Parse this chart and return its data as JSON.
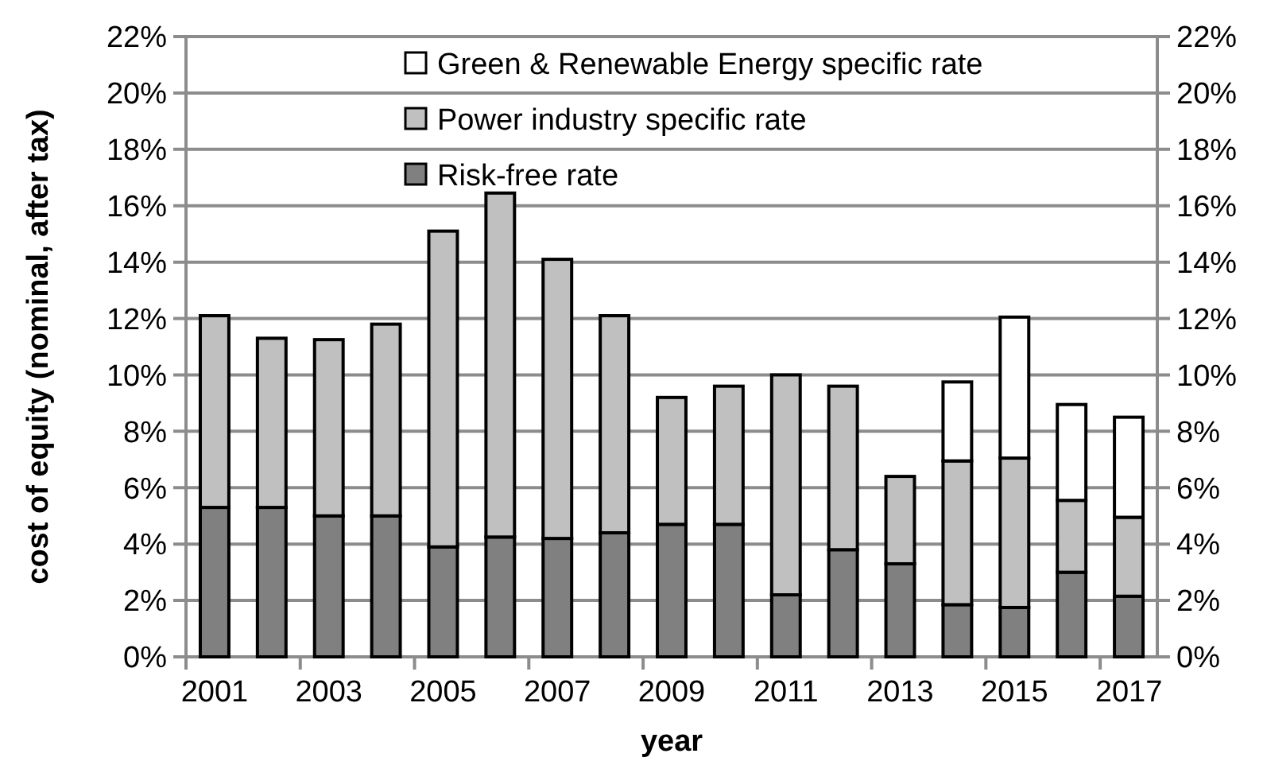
{
  "chart_data": {
    "type": "bar",
    "stacked": true,
    "xlabel": "year",
    "ylabel": "cost of equity (nominal, after tax)",
    "categories": [
      "2001",
      null,
      "2003",
      null,
      "2005",
      null,
      "2007",
      null,
      "2009",
      null,
      "2011",
      null,
      "2013",
      null,
      "2015",
      null,
      "2017"
    ],
    "series": [
      {
        "name": "Risk-free rate",
        "color": "#808080",
        "values": [
          5.3,
          5.3,
          5.0,
          5.0,
          3.9,
          4.25,
          4.2,
          4.4,
          4.7,
          4.7,
          2.2,
          3.8,
          3.3,
          1.85,
          1.75,
          3.0,
          2.15
        ]
      },
      {
        "name": "Power industry specific rate",
        "color": "#c0c0c0",
        "values": [
          6.8,
          6.0,
          6.25,
          6.8,
          11.2,
          12.2,
          9.9,
          7.7,
          4.5,
          4.9,
          7.8,
          5.8,
          3.1,
          5.1,
          5.3,
          2.55,
          2.8
        ]
      },
      {
        "name": "Green & Renewable Energy specific rate",
        "color": "#ffffff",
        "values": [
          null,
          null,
          null,
          null,
          null,
          null,
          null,
          null,
          null,
          null,
          null,
          null,
          null,
          2.8,
          5.0,
          3.4,
          3.55
        ]
      }
    ],
    "ylim": [
      0,
      22
    ],
    "yticks": [
      {
        "value": 0,
        "label": "0%"
      },
      {
        "value": 2,
        "label": "2%"
      },
      {
        "value": 4,
        "label": "4%"
      },
      {
        "value": 6,
        "label": "6%"
      },
      {
        "value": 8,
        "label": "8%"
      },
      {
        "value": 10,
        "label": "10%"
      },
      {
        "value": 12,
        "label": "12%"
      },
      {
        "value": 14,
        "label": "14%"
      },
      {
        "value": 16,
        "label": "16%"
      },
      {
        "value": 18,
        "label": "18%"
      },
      {
        "value": 20,
        "label": "20%"
      },
      {
        "value": 22,
        "label": "22%"
      }
    ],
    "y2lim": [
      0,
      22
    ],
    "y2ticks": [
      {
        "value": 0,
        "label": "0%"
      },
      {
        "value": 2,
        "label": "2%"
      },
      {
        "value": 4,
        "label": "4%"
      },
      {
        "value": 6,
        "label": "6%"
      },
      {
        "value": 8,
        "label": "8%"
      },
      {
        "value": 10,
        "label": "10%"
      },
      {
        "value": 12,
        "label": "12%"
      },
      {
        "value": 14,
        "label": "14%"
      },
      {
        "value": 16,
        "label": "16%"
      },
      {
        "value": 18,
        "label": "18%"
      },
      {
        "value": 20,
        "label": "20%"
      },
      {
        "value": 22,
        "label": "22%"
      }
    ],
    "grid": "y",
    "legend": "top right"
  }
}
